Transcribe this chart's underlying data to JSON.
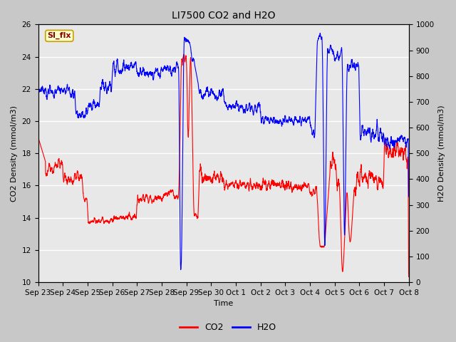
{
  "title": "LI7500 CO2 and H2O",
  "xlabel": "Time",
  "ylabel_left": "CO2 Density (mmol/m3)",
  "ylabel_right": "H2O Density (mmol/m3)",
  "ylim_left": [
    10,
    26
  ],
  "ylim_right": [
    0,
    1000
  ],
  "yticks_left": [
    10,
    12,
    14,
    16,
    18,
    20,
    22,
    24,
    26
  ],
  "yticks_right": [
    0,
    100,
    200,
    300,
    400,
    500,
    600,
    700,
    800,
    900,
    1000
  ],
  "xtick_labels": [
    "Sep 23",
    "Sep 24",
    "Sep 25",
    "Sep 26",
    "Sep 27",
    "Sep 28",
    "Sep 29",
    "Sep 30",
    "Oct 1",
    "Oct 2",
    "Oct 3",
    "Oct 4",
    "Oct 5",
    "Oct 6",
    "Oct 7",
    "Oct 8"
  ],
  "co2_color": "#FF0000",
  "h2o_color": "#0000FF",
  "fig_bg_color": "#C8C8C8",
  "plot_bg_color": "#E8E8E8",
  "annotation_text": "SI_flx",
  "annotation_bg": "#FFFFCC",
  "annotation_border": "#C8A000",
  "legend_co2": "CO2",
  "legend_h2o": "H2O",
  "line_width": 0.8,
  "title_fontsize": 10,
  "axis_fontsize": 8,
  "tick_fontsize": 7.5
}
